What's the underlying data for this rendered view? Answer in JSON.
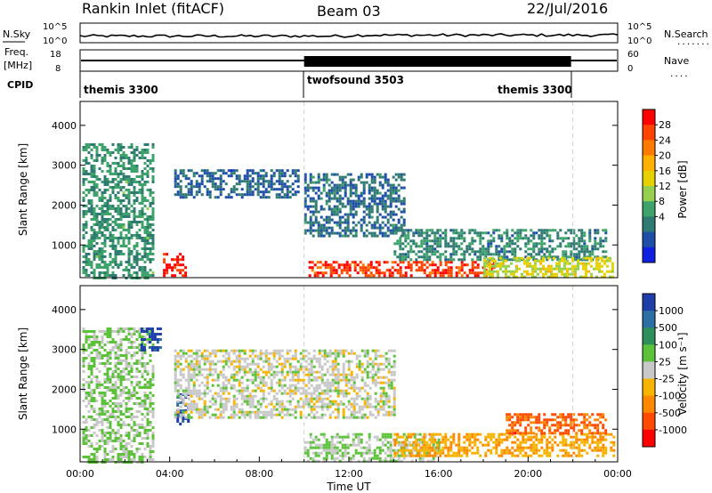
{
  "header": {
    "station": "Rankin Inlet (fitACF)",
    "beam": "Beam 03",
    "date": "22/Jul/2016"
  },
  "noise_panel": {
    "left_label": "N.Sky",
    "left_ticks": [
      "10^5",
      "10^0"
    ],
    "right_label": "N.Search",
    "right_ticks": [
      "10^5",
      "10^0"
    ],
    "right_legend_glyph": "........"
  },
  "freq_panel": {
    "left_label_top": "Freq.",
    "left_label_bottom": "[MHz]",
    "left_ticks": [
      "18",
      "8"
    ],
    "right_label": "Nave",
    "right_ticks": [
      "60",
      "0"
    ],
    "right_legend_glyph": "...."
  },
  "cpid_panel": {
    "label": "CPID",
    "segments": [
      {
        "name": "themis 3300",
        "start_hour": 0,
        "end_hour": 10
      },
      {
        "name": "twofsound 3503",
        "start_hour": 10,
        "end_hour": 22
      },
      {
        "name": "themis 3300",
        "start_hour": 22,
        "end_hour": 24
      }
    ]
  },
  "power_panel": {
    "ylabel": "Slant Range [km]",
    "cbar_label": "Power [dB]",
    "cbar_ticks": [
      "28",
      "24",
      "20",
      "16",
      "12",
      "8",
      "4"
    ],
    "cbar_colors": [
      "#ff0000",
      "#ff4400",
      "#ff7a00",
      "#ffb000",
      "#e6d200",
      "#97d050",
      "#3ea36a",
      "#2f7a72",
      "#1f4ea8",
      "#1020e0"
    ]
  },
  "velocity_panel": {
    "ylabel": "Slant Range [km]",
    "cbar_label": "Velocity [m s⁻¹]",
    "cbar_ticks": [
      "1000",
      "500",
      "100",
      "25",
      "-25",
      "-100",
      "-500",
      "-1000"
    ],
    "cbar_colors": [
      "#1f3fa8",
      "#2e6fa3",
      "#2f8f5a",
      "#5cc23a",
      "#c8c8c8",
      "#f6b400",
      "#ff8800",
      "#ff4a00",
      "#ff0000"
    ]
  },
  "xaxis": {
    "label": "Time UT",
    "ticks": [
      "00:00",
      "04:00",
      "08:00",
      "12:00",
      "16:00",
      "20:00",
      "00:00"
    ]
  },
  "chart_data": {
    "type": "heatmap",
    "title": "Rankin Inlet (fitACF)",
    "subtitle": "Beam 03 22/Jul/2016",
    "xlabel": "Time UT",
    "ylabel": "Slant Range [km]",
    "xlim_hours": [
      0,
      24
    ],
    "ylim_km": [
      180,
      4600
    ],
    "y_ticks": [
      1000,
      2000,
      3000,
      4000
    ],
    "panels": [
      {
        "name": "Power [dB]",
        "clim": [
          0,
          32
        ],
        "regions": [
          {
            "t0": 0.1,
            "t1": 3.3,
            "r0": 200,
            "r1": 3550,
            "value": 10
          },
          {
            "t0": 3.7,
            "t1": 4.7,
            "r0": 200,
            "r1": 800,
            "value": 30
          },
          {
            "t0": 4.2,
            "t1": 9.8,
            "r0": 2200,
            "r1": 2900,
            "value": 6
          },
          {
            "t0": 10.0,
            "t1": 14.5,
            "r0": 1200,
            "r1": 2800,
            "value": 7
          },
          {
            "t0": 10.2,
            "t1": 18.5,
            "r0": 200,
            "r1": 600,
            "value": 28
          },
          {
            "t0": 14.0,
            "t1": 23.5,
            "r0": 600,
            "r1": 1400,
            "value": 9
          },
          {
            "t0": 18.0,
            "t1": 23.8,
            "r0": 200,
            "r1": 700,
            "value": 17
          }
        ]
      },
      {
        "name": "Velocity [m s-1]",
        "clim": [
          -1000,
          1000
        ],
        "regions": [
          {
            "t0": 0.1,
            "t1": 3.3,
            "r0": 200,
            "r1": 3550,
            "value": 150
          },
          {
            "t0": 2.7,
            "t1": 3.6,
            "r0": 3000,
            "r1": 3550,
            "value": 900
          },
          {
            "t0": 4.3,
            "t1": 4.8,
            "r0": 1100,
            "r1": 1900,
            "value": 800
          },
          {
            "t0": 4.2,
            "t1": 14.0,
            "r0": 1300,
            "r1": 3000,
            "value": 0
          },
          {
            "t0": 10.0,
            "t1": 16.0,
            "r0": 200,
            "r1": 900,
            "value": 120
          },
          {
            "t0": 14.0,
            "t1": 23.8,
            "r0": 300,
            "r1": 900,
            "value": -300
          },
          {
            "t0": 19.0,
            "t1": 23.5,
            "r0": 900,
            "r1": 1400,
            "value": -600
          }
        ]
      }
    ]
  }
}
